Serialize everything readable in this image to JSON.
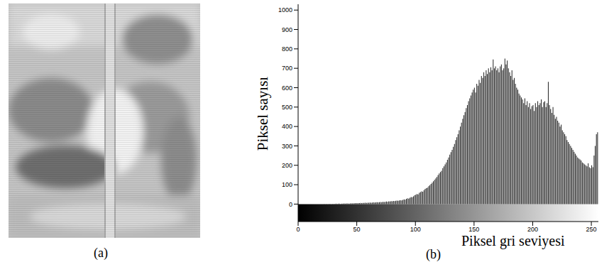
{
  "panel_labels": [
    "(a)",
    "(b)"
  ],
  "chart_data": {
    "type": "histogram",
    "x_label": "Piksel gri seviyesi",
    "y_label": "Piksel sayısı",
    "bins": [
      0,
      1,
      2,
      3,
      4,
      5,
      6,
      7,
      8,
      9,
      10,
      11,
      12,
      13,
      14,
      15,
      16,
      17,
      18,
      19,
      20,
      21,
      22,
      23,
      24,
      25,
      26,
      27,
      28,
      29,
      30,
      31,
      32,
      33,
      34,
      35,
      36,
      37,
      38,
      39,
      40,
      41,
      42,
      43,
      44,
      45,
      46,
      47,
      48,
      49,
      50,
      51,
      52,
      53,
      54,
      55,
      56,
      57,
      58,
      59,
      60,
      61,
      62,
      63,
      64,
      65,
      66,
      67,
      68,
      69,
      70,
      71,
      72,
      73,
      74,
      75,
      76,
      77,
      78,
      79,
      80,
      81,
      82,
      83,
      84,
      85,
      86,
      87,
      88,
      89,
      90,
      91,
      92,
      93,
      94,
      95,
      96,
      97,
      98,
      99,
      100,
      101,
      102,
      103,
      104,
      105,
      106,
      107,
      108,
      109,
      110,
      111,
      112,
      113,
      114,
      115,
      116,
      117,
      118,
      119,
      120,
      121,
      122,
      123,
      124,
      125,
      126,
      127,
      128,
      129,
      130,
      131,
      132,
      133,
      134,
      135,
      136,
      137,
      138,
      139,
      140,
      141,
      142,
      143,
      144,
      145,
      146,
      147,
      148,
      149,
      150,
      151,
      152,
      153,
      154,
      155,
      156,
      157,
      158,
      159,
      160,
      161,
      162,
      163,
      164,
      165,
      166,
      167,
      168,
      169,
      170,
      171,
      172,
      173,
      174,
      175,
      176,
      177,
      178,
      179,
      180,
      181,
      182,
      183,
      184,
      185,
      186,
      187,
      188,
      189,
      190,
      191,
      192,
      193,
      194,
      195,
      196,
      197,
      198,
      199,
      200,
      201,
      202,
      203,
      204,
      205,
      206,
      207,
      208,
      209,
      210,
      211,
      212,
      213,
      214,
      215,
      216,
      217,
      218,
      219,
      220,
      221,
      222,
      223,
      224,
      225,
      226,
      227,
      228,
      229,
      230,
      231,
      232,
      233,
      234,
      235,
      236,
      237,
      238,
      239,
      240,
      241,
      242,
      243,
      244,
      245,
      246,
      247,
      248,
      249,
      250,
      251,
      252,
      253,
      254,
      255,
      256
    ],
    "values": [
      0,
      0,
      0,
      0,
      0,
      0,
      0,
      0,
      0,
      0,
      0,
      0,
      0,
      0,
      0,
      0,
      0,
      0,
      0,
      0,
      0,
      0,
      1,
      0,
      1,
      0,
      1,
      1,
      0,
      1,
      1,
      1,
      2,
      1,
      2,
      2,
      1,
      2,
      2,
      3,
      2,
      3,
      3,
      2,
      3,
      4,
      3,
      4,
      4,
      5,
      4,
      5,
      5,
      6,
      5,
      6,
      6,
      7,
      6,
      7,
      7,
      8,
      7,
      8,
      9,
      8,
      9,
      10,
      9,
      10,
      11,
      10,
      12,
      11,
      12,
      13,
      12,
      14,
      13,
      15,
      14,
      16,
      15,
      17,
      18,
      17,
      19,
      20,
      19,
      22,
      24,
      23,
      27,
      30,
      28,
      33,
      36,
      35,
      40,
      45,
      48,
      52,
      50,
      58,
      62,
      66,
      64,
      72,
      78,
      82,
      85,
      92,
      98,
      104,
      110,
      118,
      125,
      132,
      140,
      150,
      158,
      165,
      172,
      185,
      195,
      205,
      215,
      228,
      240,
      255,
      268,
      280,
      295,
      310,
      330,
      345,
      360,
      380,
      400,
      420,
      440,
      458,
      475,
      495,
      510,
      530,
      545,
      560,
      575,
      590,
      600,
      575,
      620,
      610,
      640,
      625,
      660,
      650,
      680,
      660,
      690,
      670,
      700,
      680,
      705,
      690,
      745,
      700,
      710,
      690,
      700,
      680,
      710,
      720,
      690,
      700,
      750,
      720,
      740,
      700,
      680,
      660,
      690,
      640,
      650,
      620,
      600,
      590,
      570,
      560,
      550,
      540,
      520,
      545,
      510,
      530,
      500,
      520,
      490,
      505,
      510,
      480,
      520,
      500,
      530,
      510,
      520,
      540,
      500,
      525,
      530,
      500,
      520,
      630,
      510,
      490,
      470,
      500,
      460,
      440,
      450,
      430,
      420,
      400,
      410,
      380,
      370,
      360,
      350,
      330,
      320,
      310,
      300,
      290,
      280,
      270,
      260,
      250,
      240,
      235,
      230,
      225,
      215,
      210,
      205,
      200,
      195,
      210,
      190,
      185,
      200,
      190,
      250,
      300,
      360,
      370
    ],
    "color": "#222222",
    "xlim": [
      0,
      256
    ],
    "xticks": [
      0,
      50,
      100,
      150,
      200,
      250
    ],
    "ylim": [
      -90,
      1030
    ],
    "yticks": [
      0,
      100,
      200,
      300,
      400,
      500,
      600,
      700,
      800,
      900,
      1000
    ],
    "grid": false
  }
}
